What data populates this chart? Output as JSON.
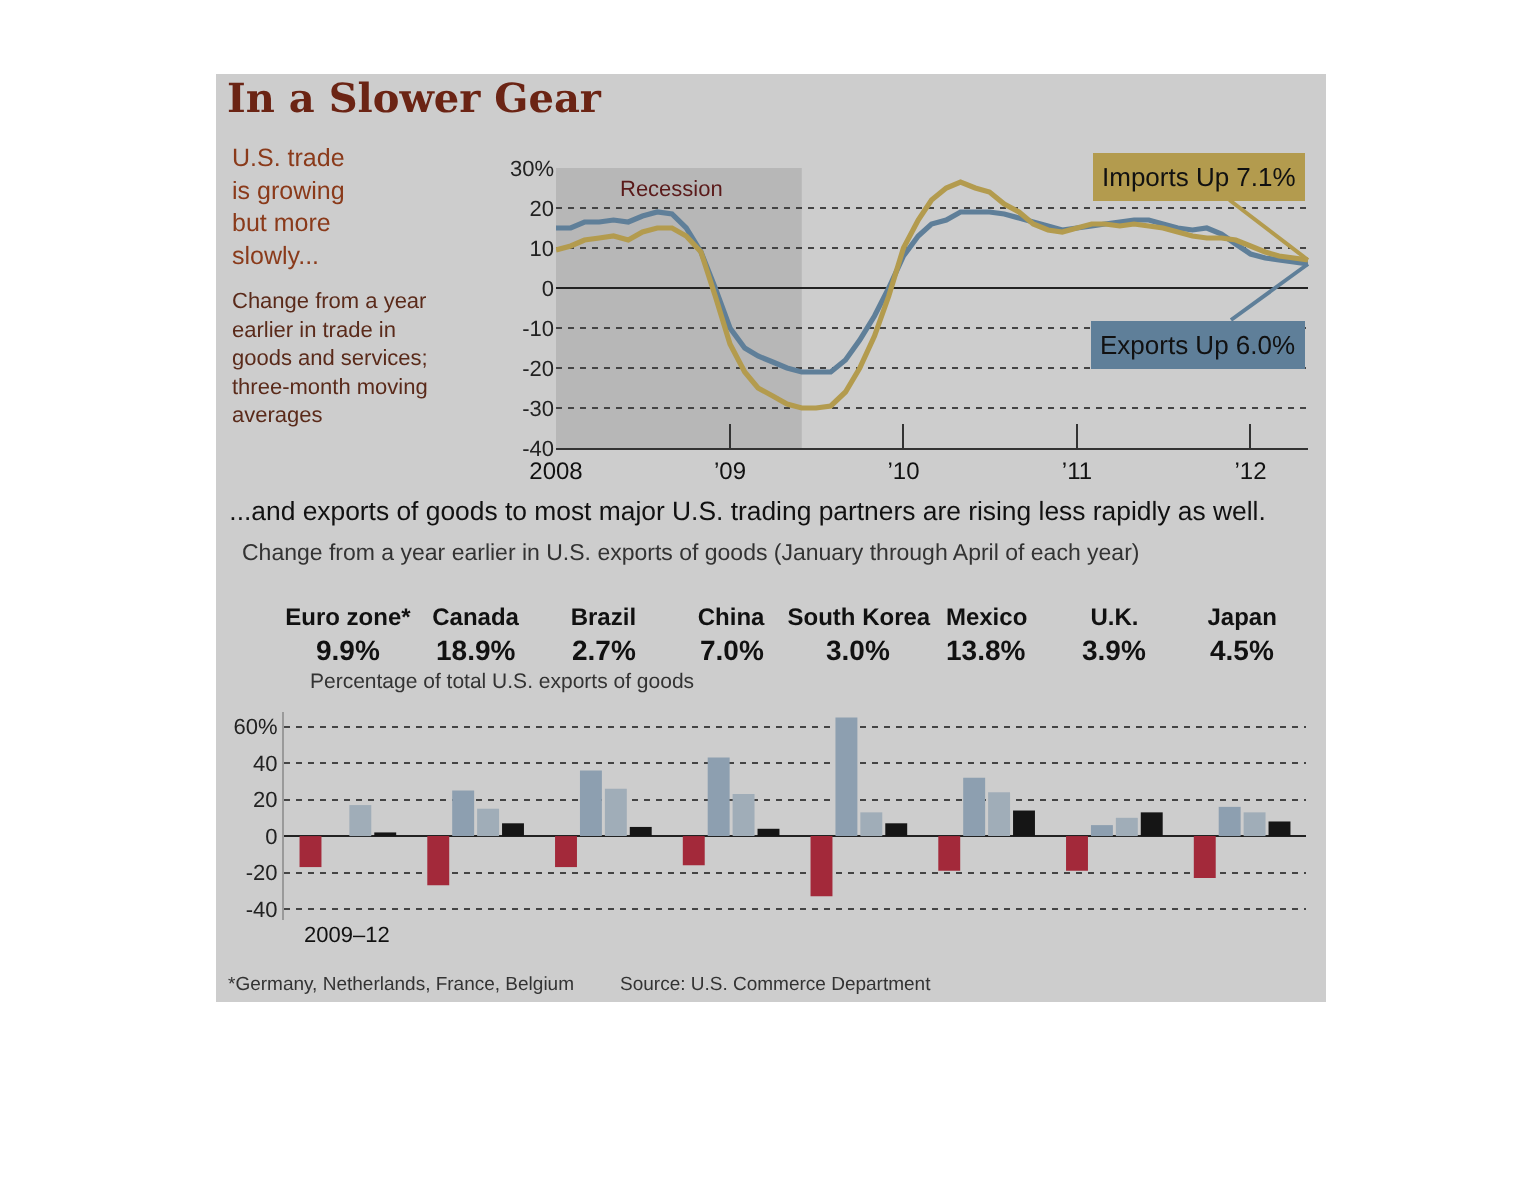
{
  "chart_data": [
    {
      "type": "line",
      "title": "In a Slower Gear",
      "x": [
        "2008-01",
        "2008-02",
        "2008-03",
        "2008-04",
        "2008-05",
        "2008-06",
        "2008-07",
        "2008-08",
        "2008-09",
        "2008-10",
        "2008-11",
        "2008-12",
        "2009-01",
        "2009-02",
        "2009-03",
        "2009-04",
        "2009-05",
        "2009-06",
        "2009-07",
        "2009-08",
        "2009-09",
        "2009-10",
        "2009-11",
        "2009-12",
        "2010-01",
        "2010-02",
        "2010-03",
        "2010-04",
        "2010-05",
        "2010-06",
        "2010-07",
        "2010-08",
        "2010-09",
        "2010-10",
        "2010-11",
        "2010-12",
        "2011-01",
        "2011-02",
        "2011-03",
        "2011-04",
        "2011-05",
        "2011-06",
        "2011-07",
        "2011-08",
        "2011-09",
        "2011-10",
        "2011-11",
        "2011-12",
        "2012-01",
        "2012-02",
        "2012-03",
        "2012-04",
        "2012-05"
      ],
      "series": [
        {
          "color": "#5f7f99",
          "values": [
            15,
            15,
            16.5,
            16.5,
            17,
            16.5,
            18,
            19,
            18.5,
            15,
            9,
            0,
            -10,
            -15,
            -17,
            -18.5,
            -20,
            -21,
            -21,
            -21,
            -18,
            -13,
            -7,
            0,
            8,
            13,
            16,
            17,
            19,
            19,
            19,
            18.5,
            17.5,
            16.5,
            15.5,
            14.5,
            15,
            15.5,
            16,
            16.5,
            17,
            17,
            16,
            15,
            14.5,
            15,
            13.5,
            11,
            8.5,
            7.5,
            7,
            6.5,
            6
          ]
        },
        {
          "color": "#b39b4e",
          "values": [
            9.5,
            10.5,
            12,
            12.5,
            13,
            12,
            14,
            15,
            15,
            13,
            9,
            -2,
            -14,
            -21,
            -25,
            -27,
            -29,
            -30,
            -30,
            -29.5,
            -26,
            -20,
            -12,
            -2,
            10,
            17,
            22,
            25,
            26.5,
            25,
            24,
            21,
            19,
            16,
            14.5,
            14,
            15,
            16,
            16,
            15.5,
            16,
            15.5,
            15,
            14,
            13,
            12.5,
            12.5,
            12,
            10.5,
            9,
            8,
            7.5,
            7
          ]
        }
      ],
      "xlim": [
        "2008-01",
        "2012-05"
      ],
      "xticks": [
        {
          "value": "2008-01",
          "label": "2008"
        },
        {
          "value": "2009-01",
          "label": "’09"
        },
        {
          "value": "2010-01",
          "label": "’10"
        },
        {
          "value": "2011-01",
          "label": "’11"
        },
        {
          "value": "2012-01",
          "label": "’12"
        }
      ],
      "ylim": [
        -40,
        30
      ],
      "yticks": [
        {
          "value": 30,
          "label": "30%"
        },
        20,
        10,
        0,
        -10,
        -20,
        -30,
        -40
      ],
      "grid": "y",
      "bands": [
        {
          "axis": "x",
          "from": "2008-01",
          "to": "2009-06",
          "label": "Recession",
          "color": "#a9a9a9"
        }
      ],
      "annotations": [
        "U.S. trade is growing but more slowly...",
        "Change from a year earlier in trade in goods and services; three-month moving averages",
        {
          "text": "Imports Up 7.1%",
          "x": "2012-05",
          "y": 7
        },
        {
          "text": "Exports Up 6.0%",
          "x": "2012-05",
          "y": 6
        }
      ]
    },
    {
      "type": "bar",
      "title": "...and exports of goods to most major U.S. trading partners are rising less rapidly as well.",
      "subtitle": "Change from a year earlier in U.S. exports of goods (January through April of each year)",
      "categories": [
        "Euro zone*",
        "Canada",
        "Brazil",
        "China",
        "South Korea",
        "Mexico",
        "U.K.",
        "Japan"
      ],
      "series": [
        {
          "color": "#a3293a",
          "values": [
            -17,
            -27,
            -17,
            -16,
            -33,
            -19,
            -19,
            -23
          ]
        },
        {
          "color": "#8d9fb0",
          "values": [
            null,
            25,
            36,
            43,
            65,
            32,
            6,
            16
          ]
        },
        {
          "color": "#a0adb8",
          "values": [
            17,
            15,
            26,
            23,
            13,
            24,
            10,
            13
          ]
        },
        {
          "color": "#151515",
          "values": [
            2,
            7,
            5,
            4,
            7,
            14,
            13,
            8
          ]
        }
      ],
      "ylim": [
        -46,
        68
      ],
      "yticks": [
        {
          "value": 60,
          "label": "60%"
        },
        40,
        20,
        0,
        -20,
        -40
      ],
      "grid": "y",
      "annotations": [
        "Percentage of total U.S. exports of goods",
        "2009–12",
        "*Germany, Netherlands, France, Belgium",
        "Source: U.S. Commerce Department",
        "9.9%",
        "18.9%",
        "2.7%",
        "7.0%",
        "3.0%",
        "13.8%",
        "3.9%",
        "4.5%"
      ]
    }
  ]
}
